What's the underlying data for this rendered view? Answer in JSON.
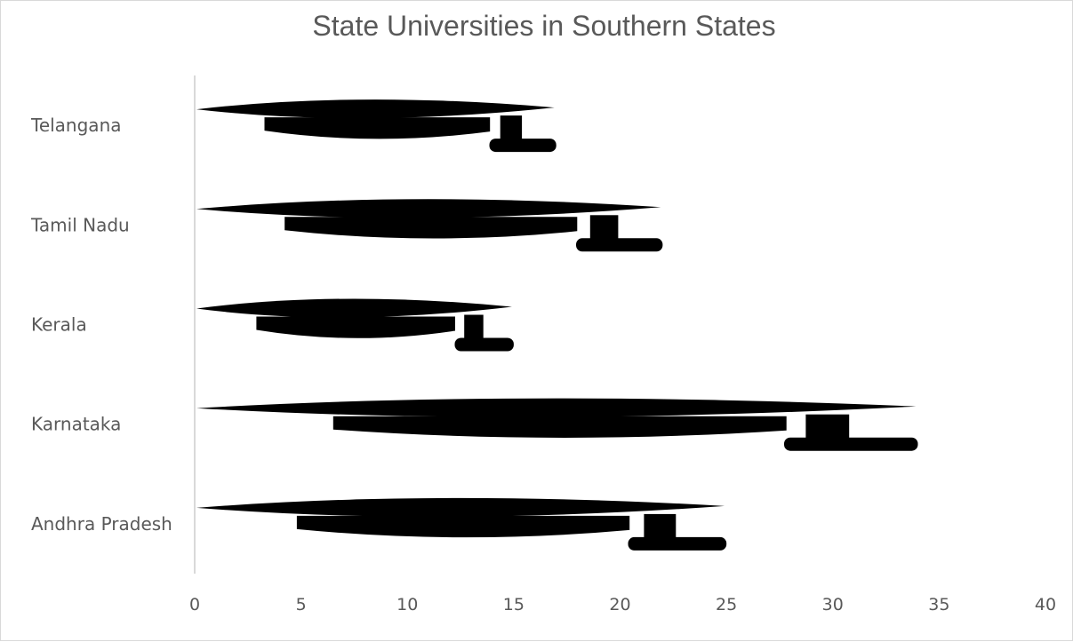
{
  "chart_data": {
    "type": "bar",
    "orientation": "horizontal",
    "title": "State Universities in Southern States",
    "categories": [
      "Andhra Pradesh",
      "Karnataka",
      "Kerala",
      "Tamil Nadu",
      "Telangana"
    ],
    "values": [
      25,
      34,
      15,
      22,
      17
    ],
    "xlim": [
      0,
      40
    ],
    "xticks": [
      0,
      5,
      10,
      15,
      20,
      25,
      30,
      35,
      40
    ],
    "xlabel": "",
    "ylabel": "",
    "grid": false,
    "legend": "none",
    "bar_style": "black pictogram shapes",
    "colors": {
      "bar": "#000000",
      "text": "#595959",
      "axis": "#d9d9d9"
    }
  }
}
